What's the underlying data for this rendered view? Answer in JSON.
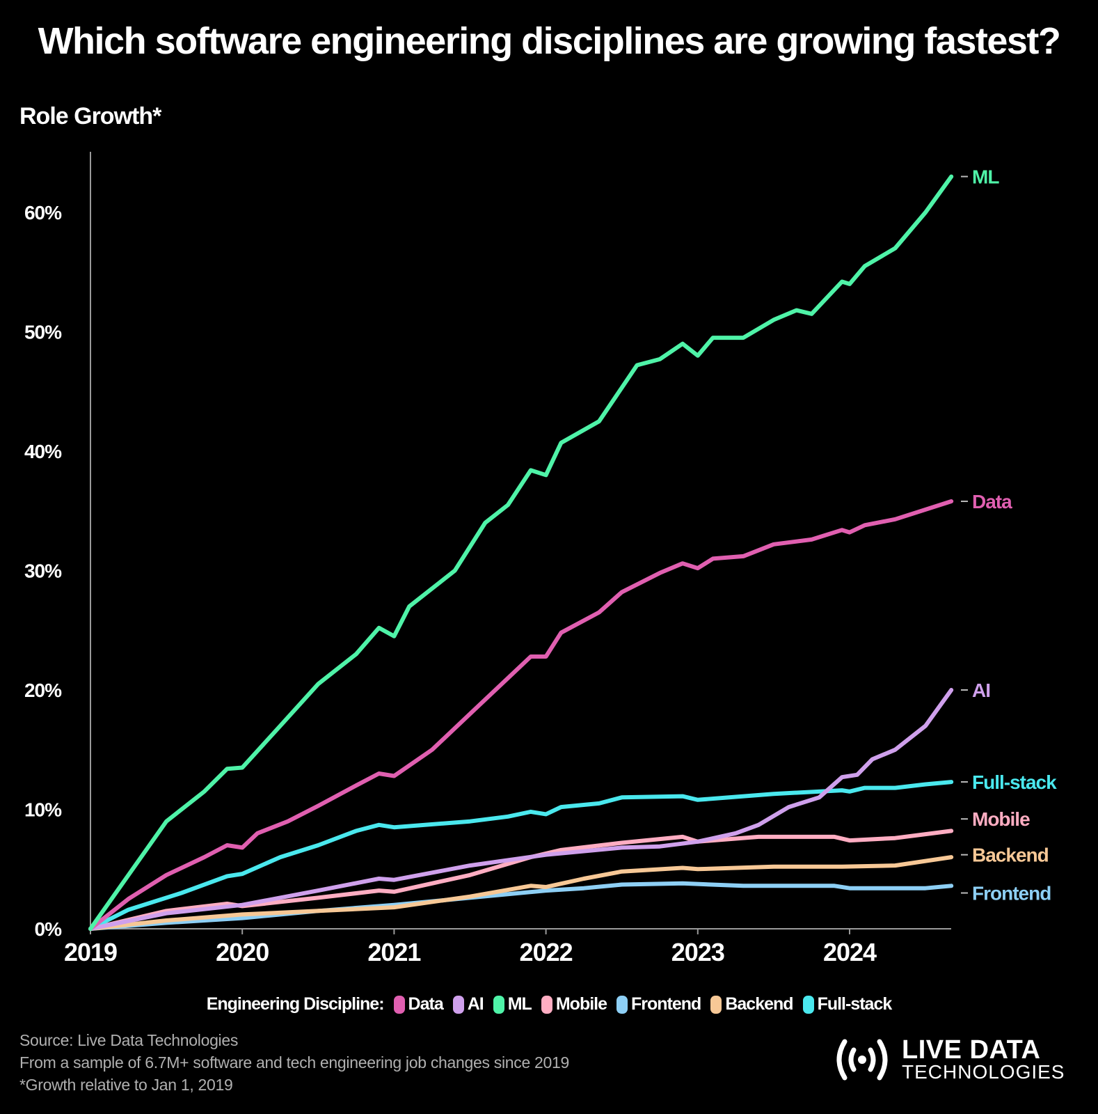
{
  "title": "Which software engineering disciplines are growing fastest?",
  "subtitle": "Role Growth*",
  "legend": {
    "title": "Engineering Discipline:",
    "items": [
      "Data",
      "AI",
      "ML",
      "Mobile",
      "Frontend",
      "Backend",
      "Full-stack"
    ]
  },
  "footer": {
    "source": "Source: Live Data Technologies",
    "sample": "From a sample of 6.7M+ software and tech engineering job changes since 2019",
    "note": "*Growth relative to Jan 1, 2019"
  },
  "logo": {
    "line1": "LIVE DATA",
    "line2": "TECHNOLOGIES"
  },
  "chart_data": {
    "type": "line",
    "title": "Which software engineering disciplines are growing fastest?",
    "ylabel": "Role Growth*",
    "xlabel": "",
    "xlim": [
      2019,
      2024.67
    ],
    "ylim": [
      0,
      63
    ],
    "x_ticks": [
      2019,
      2020,
      2021,
      2022,
      2023,
      2024
    ],
    "y_ticks": [
      0,
      10,
      20,
      30,
      40,
      50,
      60
    ],
    "y_tick_labels": [
      "0%",
      "10%",
      "20%",
      "30%",
      "40%",
      "50%",
      "60%"
    ],
    "grid": false,
    "legend": "bottom",
    "series": [
      {
        "name": "ML",
        "color": "#4ff3a8",
        "points": [
          [
            2019,
            0
          ],
          [
            2019.25,
            4.5
          ],
          [
            2019.5,
            9
          ],
          [
            2019.75,
            11.5
          ],
          [
            2019.9,
            13.4
          ],
          [
            2020,
            13.5
          ],
          [
            2020.25,
            17
          ],
          [
            2020.5,
            20.5
          ],
          [
            2020.75,
            23
          ],
          [
            2020.9,
            25.2
          ],
          [
            2021,
            24.5
          ],
          [
            2021.1,
            27
          ],
          [
            2021.4,
            30
          ],
          [
            2021.6,
            34
          ],
          [
            2021.75,
            35.5
          ],
          [
            2021.9,
            38.4
          ],
          [
            2022,
            38
          ],
          [
            2022.1,
            40.7
          ],
          [
            2022.35,
            42.5
          ],
          [
            2022.6,
            47.2
          ],
          [
            2022.75,
            47.7
          ],
          [
            2022.9,
            49
          ],
          [
            2023,
            48
          ],
          [
            2023.1,
            49.5
          ],
          [
            2023.3,
            49.5
          ],
          [
            2023.5,
            51
          ],
          [
            2023.65,
            51.8
          ],
          [
            2023.75,
            51.5
          ],
          [
            2023.95,
            54.2
          ],
          [
            2024,
            54
          ],
          [
            2024.1,
            55.5
          ],
          [
            2024.3,
            57
          ],
          [
            2024.5,
            60
          ],
          [
            2024.67,
            63
          ]
        ]
      },
      {
        "name": "Data",
        "color": "#e05fb0",
        "points": [
          [
            2019,
            0
          ],
          [
            2019.25,
            2.5
          ],
          [
            2019.5,
            4.5
          ],
          [
            2019.75,
            6
          ],
          [
            2019.9,
            7
          ],
          [
            2020,
            6.8
          ],
          [
            2020.1,
            8
          ],
          [
            2020.3,
            9
          ],
          [
            2020.5,
            10.3
          ],
          [
            2020.75,
            12
          ],
          [
            2020.9,
            13
          ],
          [
            2021,
            12.8
          ],
          [
            2021.25,
            15
          ],
          [
            2021.5,
            18
          ],
          [
            2021.75,
            21
          ],
          [
            2021.9,
            22.8
          ],
          [
            2022,
            22.8
          ],
          [
            2022.1,
            24.8
          ],
          [
            2022.35,
            26.5
          ],
          [
            2022.5,
            28.2
          ],
          [
            2022.75,
            29.8
          ],
          [
            2022.9,
            30.6
          ],
          [
            2023,
            30.2
          ],
          [
            2023.1,
            31
          ],
          [
            2023.3,
            31.2
          ],
          [
            2023.5,
            32.2
          ],
          [
            2023.75,
            32.6
          ],
          [
            2023.95,
            33.4
          ],
          [
            2024,
            33.2
          ],
          [
            2024.1,
            33.8
          ],
          [
            2024.3,
            34.3
          ],
          [
            2024.67,
            35.8
          ]
        ]
      },
      {
        "name": "AI",
        "color": "#cfa0ec",
        "points": [
          [
            2019,
            0
          ],
          [
            2019.5,
            1.3
          ],
          [
            2020,
            2
          ],
          [
            2020.5,
            3.2
          ],
          [
            2020.9,
            4.2
          ],
          [
            2021,
            4.1
          ],
          [
            2021.5,
            5.3
          ],
          [
            2022,
            6.2
          ],
          [
            2022.5,
            6.8
          ],
          [
            2022.75,
            6.9
          ],
          [
            2023,
            7.3
          ],
          [
            2023.25,
            8
          ],
          [
            2023.4,
            8.7
          ],
          [
            2023.6,
            10.2
          ],
          [
            2023.8,
            11
          ],
          [
            2023.95,
            12.7
          ],
          [
            2024.05,
            12.9
          ],
          [
            2024.15,
            14.2
          ],
          [
            2024.3,
            15
          ],
          [
            2024.5,
            17
          ],
          [
            2024.67,
            20
          ]
        ]
      },
      {
        "name": "Full-stack",
        "color": "#4ae8ee",
        "points": [
          [
            2019,
            0
          ],
          [
            2019.25,
            1.6
          ],
          [
            2019.6,
            3
          ],
          [
            2019.9,
            4.4
          ],
          [
            2020,
            4.6
          ],
          [
            2020.25,
            6
          ],
          [
            2020.5,
            7
          ],
          [
            2020.75,
            8.2
          ],
          [
            2020.9,
            8.7
          ],
          [
            2021,
            8.5
          ],
          [
            2021.5,
            9
          ],
          [
            2021.75,
            9.4
          ],
          [
            2021.9,
            9.8
          ],
          [
            2022,
            9.6
          ],
          [
            2022.1,
            10.2
          ],
          [
            2022.35,
            10.5
          ],
          [
            2022.5,
            11
          ],
          [
            2022.9,
            11.1
          ],
          [
            2023,
            10.8
          ],
          [
            2023.5,
            11.3
          ],
          [
            2023.95,
            11.6
          ],
          [
            2024,
            11.5
          ],
          [
            2024.1,
            11.8
          ],
          [
            2024.3,
            11.8
          ],
          [
            2024.5,
            12.1
          ],
          [
            2024.67,
            12.3
          ]
        ]
      },
      {
        "name": "Mobile",
        "color": "#ffadc2",
        "points": [
          [
            2019,
            0
          ],
          [
            2019.5,
            1.5
          ],
          [
            2019.9,
            2.1
          ],
          [
            2020,
            1.9
          ],
          [
            2020.5,
            2.6
          ],
          [
            2020.9,
            3.2
          ],
          [
            2021,
            3.1
          ],
          [
            2021.5,
            4.5
          ],
          [
            2021.9,
            6
          ],
          [
            2022.1,
            6.6
          ],
          [
            2022.5,
            7.2
          ],
          [
            2022.9,
            7.7
          ],
          [
            2023,
            7.3
          ],
          [
            2023.4,
            7.7
          ],
          [
            2023.9,
            7.7
          ],
          [
            2024,
            7.4
          ],
          [
            2024.3,
            7.6
          ],
          [
            2024.67,
            8.2
          ]
        ]
      },
      {
        "name": "Backend",
        "color": "#f7c896",
        "points": [
          [
            2019,
            0
          ],
          [
            2019.5,
            0.7
          ],
          [
            2020,
            1.2
          ],
          [
            2020.5,
            1.5
          ],
          [
            2021,
            1.8
          ],
          [
            2021.5,
            2.7
          ],
          [
            2021.9,
            3.6
          ],
          [
            2022,
            3.5
          ],
          [
            2022.25,
            4.2
          ],
          [
            2022.5,
            4.8
          ],
          [
            2022.9,
            5.1
          ],
          [
            2023,
            5
          ],
          [
            2023.5,
            5.2
          ],
          [
            2023.95,
            5.2
          ],
          [
            2024.3,
            5.3
          ],
          [
            2024.67,
            6
          ]
        ]
      },
      {
        "name": "Frontend",
        "color": "#8dcff5",
        "points": [
          [
            2019,
            0
          ],
          [
            2019.5,
            0.5
          ],
          [
            2020,
            0.9
          ],
          [
            2020.5,
            1.5
          ],
          [
            2021,
            2
          ],
          [
            2021.5,
            2.6
          ],
          [
            2022,
            3.2
          ],
          [
            2022.25,
            3.4
          ],
          [
            2022.5,
            3.7
          ],
          [
            2022.9,
            3.8
          ],
          [
            2023.3,
            3.6
          ],
          [
            2023.9,
            3.6
          ],
          [
            2024,
            3.4
          ],
          [
            2024.5,
            3.4
          ],
          [
            2024.67,
            3.6
          ]
        ]
      }
    ]
  }
}
